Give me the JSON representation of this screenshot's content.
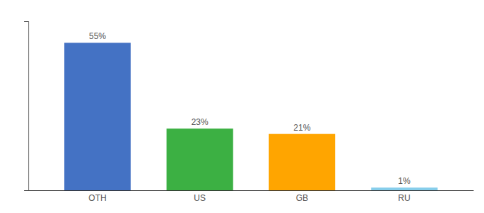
{
  "chart_data": {
    "type": "bar",
    "categories": [
      "OTH",
      "US",
      "GB",
      "RU"
    ],
    "values": [
      55,
      23,
      21,
      1
    ],
    "value_labels": [
      "55%",
      "23%",
      "21%",
      "1%"
    ],
    "colors": [
      "#4472C4",
      "#3CB043",
      "#FFA500",
      "#87CEEB"
    ],
    "ylim": [
      0,
      63
    ],
    "data_labels": true,
    "tick_labels": "x"
  }
}
